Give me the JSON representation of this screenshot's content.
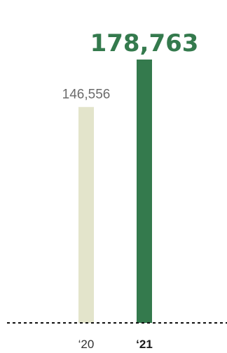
{
  "chart_data": {
    "type": "bar",
    "categories": [
      "‘20",
      "‘21"
    ],
    "values": [
      146556,
      178763
    ],
    "value_labels": [
      "146,556",
      "178,763"
    ],
    "title": "",
    "xlabel": "",
    "ylabel": "",
    "ylim": [
      0,
      178763
    ],
    "grid": false,
    "legend": "none",
    "colors": [
      "#e3e4cb",
      "#347a4d"
    ],
    "highlight_index": 1
  }
}
